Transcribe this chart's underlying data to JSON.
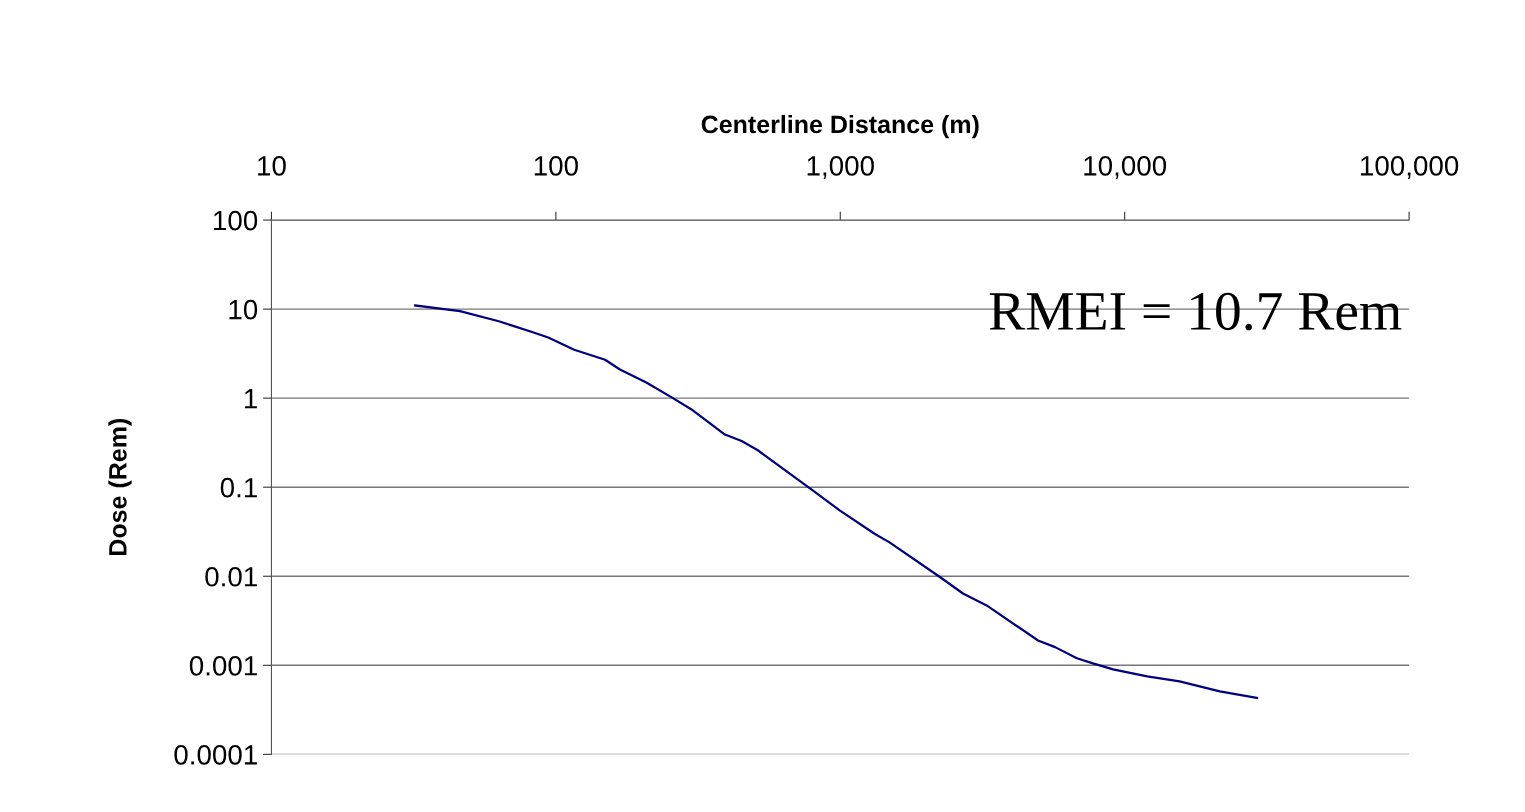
{
  "chart_data": {
    "type": "line",
    "xlabel": "Centerline Distance (m)",
    "ylabel": "Dose (Rem)",
    "annotations": [
      "RMEI = 10.7 Rem"
    ],
    "log": "xy",
    "grid": "y",
    "marker": "none",
    "line_style": "solid",
    "xlim": [
      10,
      100000
    ],
    "xticks": [
      10,
      100,
      {
        "value": 1000,
        "label": "1,000"
      },
      {
        "value": 10000,
        "label": "10,000"
      },
      {
        "value": 100000,
        "label": "100,000"
      }
    ],
    "ylim": [
      0.0001,
      100
    ],
    "yticks": [
      0.0001,
      0.001,
      0.01,
      0.1,
      1,
      10,
      100
    ],
    "series": [
      {
        "color": "#000080",
        "x": [
          32,
          46,
          63,
          83,
          94,
          116,
          149,
          168,
          208,
          258,
          303,
          393,
          450,
          513,
          800,
          995,
          1320,
          1490,
          2240,
          2700,
          3270,
          4960,
          5690,
          6790,
          7730,
          9100,
          12000,
          15600,
          21600,
          29200
        ],
        "values": [
          11,
          9.5,
          7.3,
          5.5,
          4.8,
          3.5,
          2.7,
          2.1,
          1.5,
          1.0,
          0.73,
          0.39,
          0.33,
          0.26,
          0.092,
          0.055,
          0.03,
          0.024,
          0.0098,
          0.0064,
          0.0047,
          0.0019,
          0.0016,
          0.0012,
          0.00105,
          0.0009,
          0.00075,
          0.00066,
          0.00051,
          0.00043
        ]
      }
    ]
  }
}
